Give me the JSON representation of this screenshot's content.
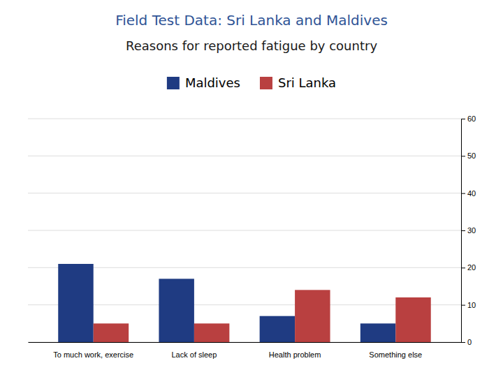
{
  "chart_data": {
    "type": "bar",
    "title": "Field Test Data:  Sri Lanka and Maldives",
    "subtitle": "Reasons for reported fatigue by country",
    "categories": [
      "To much work, exercise",
      "Lack of sleep",
      "Health problem",
      "Something else"
    ],
    "series": [
      {
        "name": "Maldives",
        "color": "#1F3B82",
        "values": [
          21,
          17,
          7,
          5
        ]
      },
      {
        "name": "Sri Lanka",
        "color": "#B94040",
        "values": [
          5,
          5,
          14,
          12
        ]
      }
    ],
    "ylim": [
      0,
      60
    ],
    "yticks": [
      0,
      10,
      20,
      30,
      40,
      50,
      60
    ],
    "grid": true,
    "legend": "top"
  }
}
